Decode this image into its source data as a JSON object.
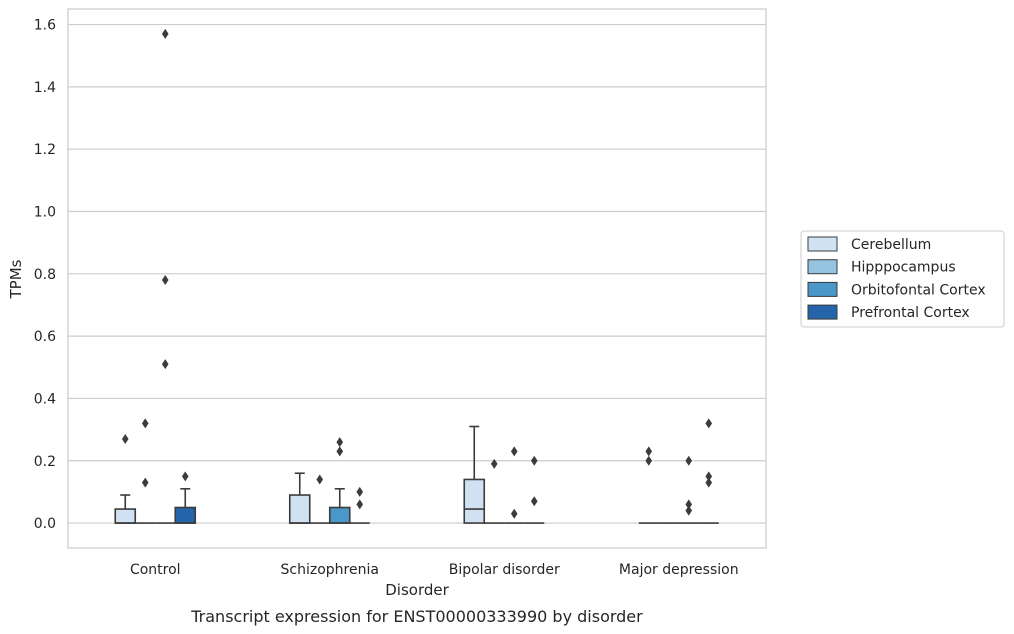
{
  "chart_data": {
    "type": "boxplot",
    "caption": "Transcript expression for ENST00000333990 by disorder",
    "xlabel": "Disorder",
    "ylabel": "TPMs",
    "ylim": [
      -0.08,
      1.65
    ],
    "yticks": [
      "0.0",
      "0.2",
      "0.4",
      "0.6",
      "0.8",
      "1.0",
      "1.2",
      "1.4",
      "1.6"
    ],
    "grid": true,
    "legend_placement": "center-right outside",
    "categories": [
      "Control",
      "Schizophrenia",
      "Bipolar disorder",
      "Major depression"
    ],
    "series": [
      {
        "name": "Cerebellum",
        "color": "#d0e1f2",
        "boxes": [
          {
            "q1": 0.0,
            "median": 0.0,
            "q3": 0.045,
            "whislo": 0.0,
            "whishi": 0.09,
            "fliers": [
              0.27
            ]
          },
          {
            "q1": 0.0,
            "median": 0.0,
            "q3": 0.09,
            "whislo": 0.0,
            "whishi": 0.16,
            "fliers": []
          },
          {
            "q1": 0.0,
            "median": 0.045,
            "q3": 0.14,
            "whislo": 0.0,
            "whishi": 0.31,
            "fliers": []
          },
          {
            "q1": 0.0,
            "median": 0.0,
            "q3": 0.0,
            "whislo": 0.0,
            "whishi": 0.0,
            "fliers": [
              0.2,
              0.23
            ]
          }
        ]
      },
      {
        "name": "Hipppocampus",
        "color": "#94c4df",
        "boxes": [
          {
            "q1": 0.0,
            "median": 0.0,
            "q3": 0.0,
            "whislo": 0.0,
            "whishi": 0.0,
            "fliers": [
              0.13,
              0.32
            ]
          },
          {
            "q1": 0.0,
            "median": 0.0,
            "q3": 0.0,
            "whislo": 0.0,
            "whishi": 0.0,
            "fliers": [
              0.14
            ]
          },
          {
            "q1": 0.0,
            "median": 0.0,
            "q3": 0.0,
            "whislo": 0.0,
            "whishi": 0.0,
            "fliers": [
              0.19
            ]
          },
          {
            "q1": 0.0,
            "median": 0.0,
            "q3": 0.0,
            "whislo": 0.0,
            "whishi": 0.0,
            "fliers": []
          }
        ]
      },
      {
        "name": "Orbitofontal Cortex",
        "color": "#4a98c9",
        "boxes": [
          {
            "q1": 0.0,
            "median": 0.0,
            "q3": 0.0,
            "whislo": 0.0,
            "whishi": 0.0,
            "fliers": [
              0.51,
              0.78,
              1.57
            ]
          },
          {
            "q1": 0.0,
            "median": 0.0,
            "q3": 0.05,
            "whislo": 0.0,
            "whishi": 0.11,
            "fliers": [
              0.23,
              0.26
            ]
          },
          {
            "q1": 0.0,
            "median": 0.0,
            "q3": 0.0,
            "whislo": 0.0,
            "whishi": 0.0,
            "fliers": [
              0.03,
              0.23
            ]
          },
          {
            "q1": 0.0,
            "median": 0.0,
            "q3": 0.0,
            "whislo": 0.0,
            "whishi": 0.0,
            "fliers": [
              0.04,
              0.06,
              0.2
            ]
          }
        ]
      },
      {
        "name": "Prefrontal Cortex",
        "color": "#2365a8",
        "boxes": [
          {
            "q1": 0.0,
            "median": 0.0,
            "q3": 0.05,
            "whislo": 0.0,
            "whishi": 0.11,
            "fliers": [
              0.15
            ]
          },
          {
            "q1": 0.0,
            "median": 0.0,
            "q3": 0.0,
            "whislo": 0.0,
            "whishi": 0.0,
            "fliers": [
              0.06,
              0.1
            ]
          },
          {
            "q1": 0.0,
            "median": 0.0,
            "q3": 0.0,
            "whislo": 0.0,
            "whishi": 0.0,
            "fliers": [
              0.07,
              0.2
            ]
          },
          {
            "q1": 0.0,
            "median": 0.0,
            "q3": 0.0,
            "whislo": 0.0,
            "whishi": 0.0,
            "fliers": [
              0.13,
              0.15,
              0.32
            ]
          }
        ]
      }
    ]
  }
}
